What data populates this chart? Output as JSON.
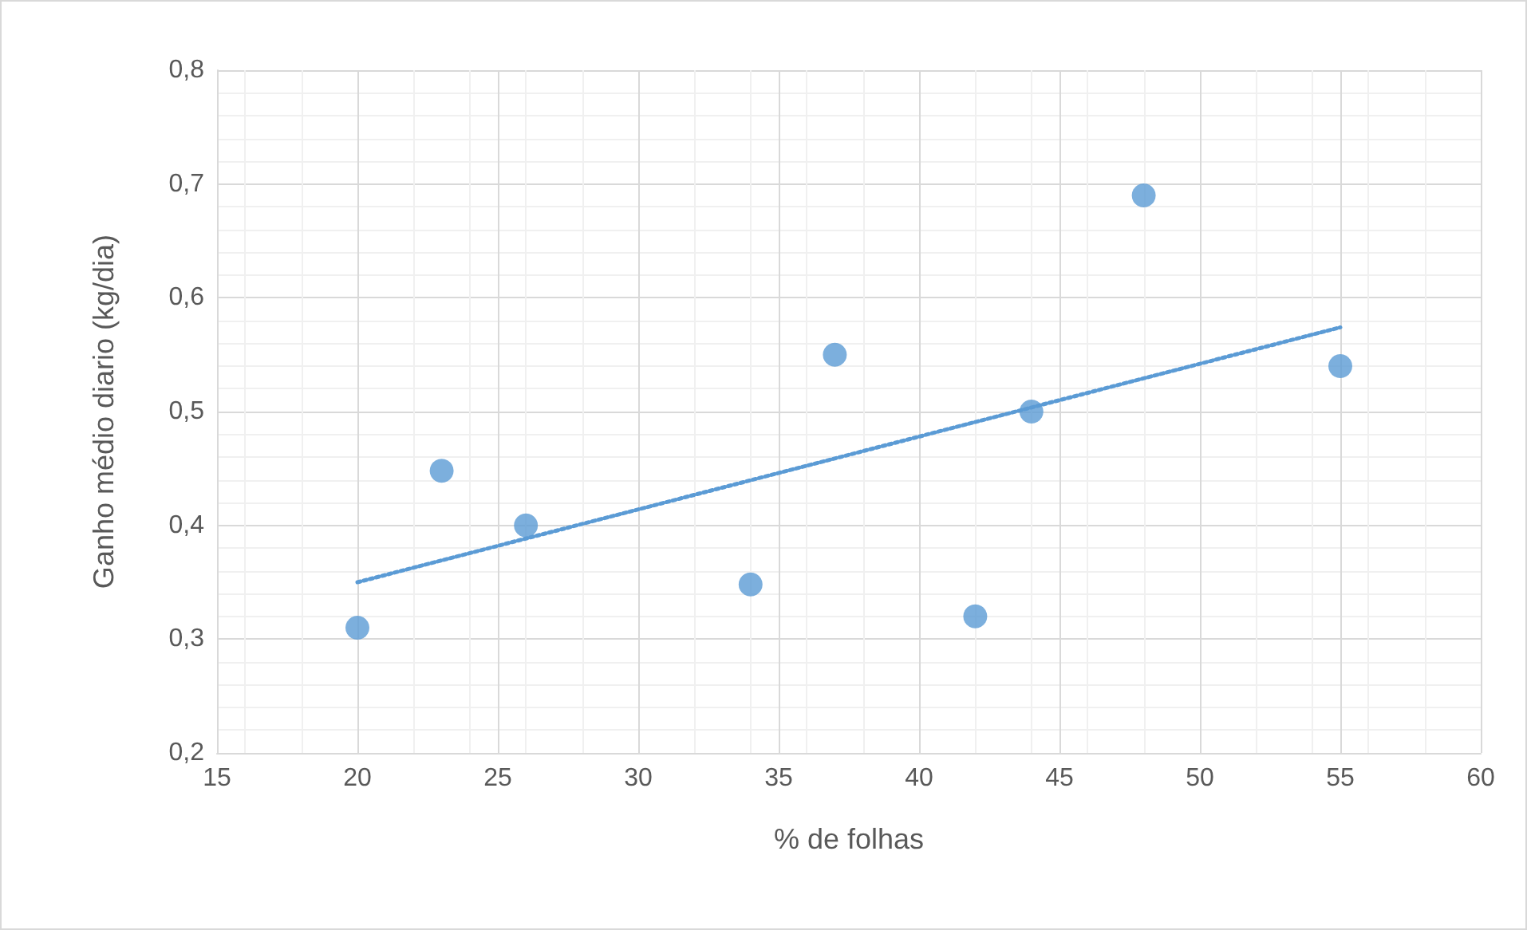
{
  "chart_data": {
    "type": "scatter",
    "xlabel": "% de folhas",
    "ylabel": "Ganho médio diario (kg/dia)",
    "series": [
      {
        "color": "#5b9bd5",
        "marker": "circle",
        "x": [
          20,
          23,
          26,
          34,
          37,
          42,
          44,
          48,
          55
        ],
        "values": [
          0.31,
          0.448,
          0.4,
          0.348,
          0.55,
          0.32,
          0.5,
          0.69,
          0.54
        ]
      },
      {
        "type": "line",
        "color": "#5b9bd5",
        "marker": "none",
        "line_style": "dotted",
        "x": [
          20,
          55
        ],
        "values": [
          0.35,
          0.574
        ]
      }
    ],
    "xlim": [
      15,
      60
    ],
    "xticks": [
      15,
      20,
      25,
      30,
      35,
      40,
      45,
      50,
      55,
      60
    ],
    "ylim": [
      0.2,
      0.8
    ],
    "yticks": [
      {
        "value": 0.2,
        "label": "0,2"
      },
      {
        "value": 0.3,
        "label": "0,3"
      },
      {
        "value": 0.4,
        "label": "0,4"
      },
      {
        "value": 0.5,
        "label": "0,5"
      },
      {
        "value": 0.6,
        "label": "0,6"
      },
      {
        "value": 0.7,
        "label": "0,7"
      },
      {
        "value": 0.8,
        "label": "0,8"
      }
    ],
    "grid": true
  }
}
